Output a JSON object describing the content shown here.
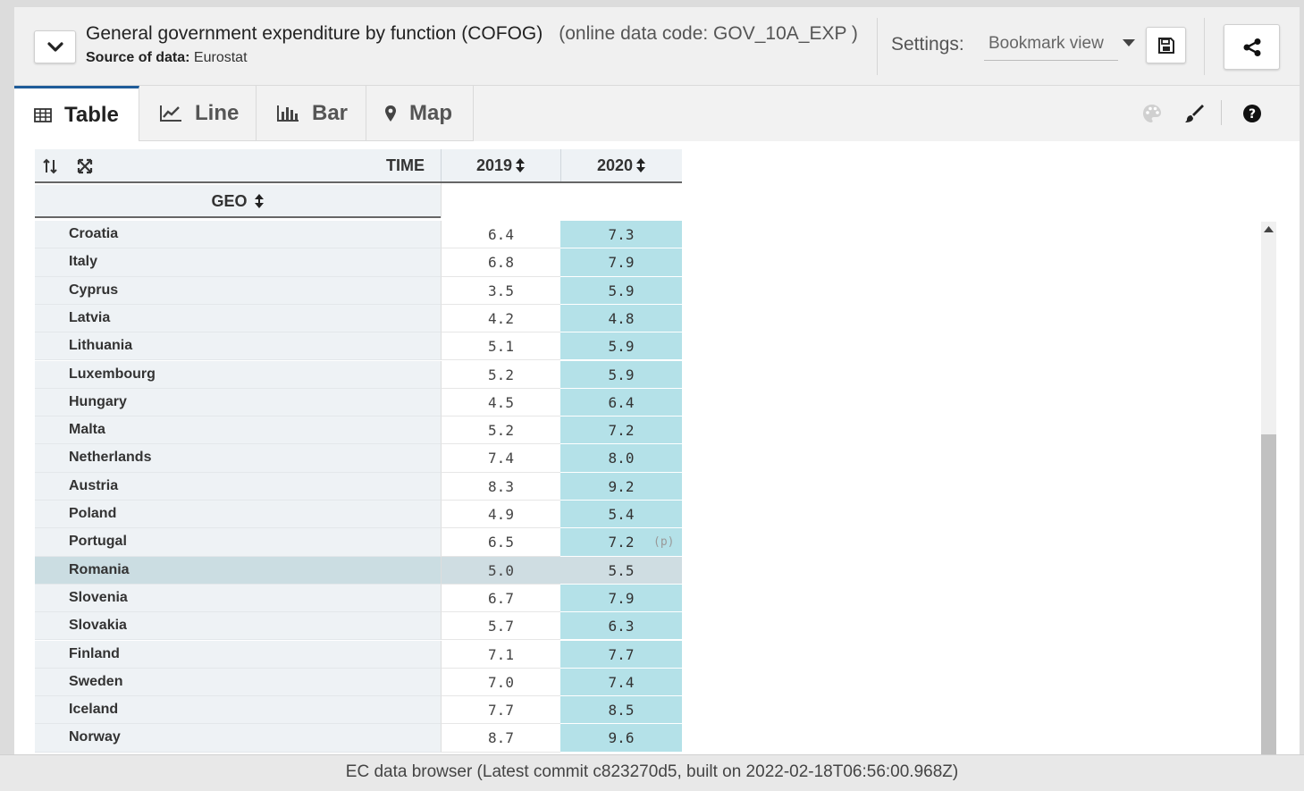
{
  "header": {
    "title": "General government expenditure by function (COFOG)",
    "data_code": "(online data code: GOV_10A_EXP )",
    "source_label": "Source of data:",
    "source_value": "Eurostat",
    "settings_label": "Settings:",
    "settings_value": "Bookmark view"
  },
  "tabs": [
    {
      "label": "Table",
      "icon": "table-icon",
      "active": true
    },
    {
      "label": "Line",
      "icon": "line-chart-icon",
      "active": false
    },
    {
      "label": "Bar",
      "icon": "bar-chart-icon",
      "active": false
    },
    {
      "label": "Map",
      "icon": "map-pin-icon",
      "active": false
    }
  ],
  "toolbar_icons": [
    "palette-icon",
    "brush-icon",
    "help-icon"
  ],
  "table": {
    "time_label": "TIME",
    "geo_label": "GEO",
    "columns": [
      "2019",
      "2020"
    ],
    "rows": [
      {
        "geo": "Croatia",
        "v2019": "6.4",
        "v2020": "7.3",
        "flag": ""
      },
      {
        "geo": "Italy",
        "v2019": "6.8",
        "v2020": "7.9",
        "flag": ""
      },
      {
        "geo": "Cyprus",
        "v2019": "3.5",
        "v2020": "5.9",
        "flag": ""
      },
      {
        "geo": "Latvia",
        "v2019": "4.2",
        "v2020": "4.8",
        "flag": ""
      },
      {
        "geo": "Lithuania",
        "v2019": "5.1",
        "v2020": "5.9",
        "flag": ""
      },
      {
        "geo": "Luxembourg",
        "v2019": "5.2",
        "v2020": "5.9",
        "flag": ""
      },
      {
        "geo": "Hungary",
        "v2019": "4.5",
        "v2020": "6.4",
        "flag": ""
      },
      {
        "geo": "Malta",
        "v2019": "5.2",
        "v2020": "7.2",
        "flag": ""
      },
      {
        "geo": "Netherlands",
        "v2019": "7.4",
        "v2020": "8.0",
        "flag": ""
      },
      {
        "geo": "Austria",
        "v2019": "8.3",
        "v2020": "9.2",
        "flag": ""
      },
      {
        "geo": "Poland",
        "v2019": "4.9",
        "v2020": "5.4",
        "flag": ""
      },
      {
        "geo": "Portugal",
        "v2019": "6.5",
        "v2020": "7.2",
        "flag": "(p)"
      },
      {
        "geo": "Romania",
        "v2019": "5.0",
        "v2020": "5.5",
        "flag": "",
        "selected": true
      },
      {
        "geo": "Slovenia",
        "v2019": "6.7",
        "v2020": "7.9",
        "flag": ""
      },
      {
        "geo": "Slovakia",
        "v2019": "5.7",
        "v2020": "6.3",
        "flag": ""
      },
      {
        "geo": "Finland",
        "v2019": "7.1",
        "v2020": "7.7",
        "flag": ""
      },
      {
        "geo": "Sweden",
        "v2019": "7.0",
        "v2020": "7.4",
        "flag": ""
      },
      {
        "geo": "Iceland",
        "v2019": "7.7",
        "v2020": "8.5",
        "flag": ""
      },
      {
        "geo": "Norway",
        "v2019": "8.7",
        "v2020": "9.6",
        "flag": ""
      }
    ]
  },
  "footer": "EC data browser (Latest commit c823270d5, built on 2022-02-18T06:56:00.968Z)"
}
